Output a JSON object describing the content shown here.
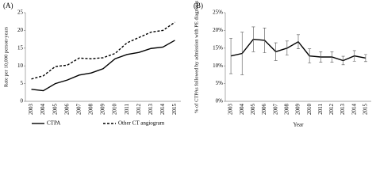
{
  "chart_data": [
    {
      "type": "line",
      "title": "(A)",
      "ylabel": "Rate per 10,000 person-years",
      "categories": [
        "2003",
        "2004",
        "2005",
        "2006",
        "2007",
        "2008",
        "2009",
        "2010",
        "2011",
        "2012",
        "2013",
        "2014",
        "2015"
      ],
      "ylim": [
        0,
        25
      ],
      "yticks": [
        0,
        5,
        10,
        15,
        20,
        25
      ],
      "series": [
        {
          "name": "CTPA",
          "color": "#000000",
          "line_style": "solid",
          "values": [
            3.4,
            3.0,
            5.0,
            6.0,
            7.4,
            8.0,
            9.2,
            12.0,
            13.2,
            13.8,
            14.9,
            15.3,
            17.2
          ]
        },
        {
          "name": "Other CT angiogram",
          "color": "#000000",
          "line_style": "dashed",
          "values": [
            6.3,
            7.2,
            9.8,
            10.2,
            12.2,
            12.0,
            12.3,
            13.5,
            16.5,
            18.0,
            19.5,
            20.0,
            22.3
          ]
        }
      ],
      "legend": "bottom"
    },
    {
      "type": "line",
      "title": "(B)",
      "ylabel": "% of CTPAs followed by admission with PE diagnosis",
      "xlabel": "Year",
      "categories": [
        "2003",
        "2004",
        "2005",
        "2006",
        "2007",
        "2008",
        "2009",
        "2010",
        "2011",
        "2012",
        "2013",
        "2014",
        "2015"
      ],
      "ylim": [
        0,
        25
      ],
      "yticks": [
        {
          "value": 0,
          "label": "0%"
        },
        {
          "value": 5,
          "label": "5%"
        },
        {
          "value": 10,
          "label": "10%"
        },
        {
          "value": 15,
          "label": "15%"
        },
        {
          "value": 20,
          "label": "20%"
        },
        {
          "value": 25,
          "label": "25%"
        }
      ],
      "series": [
        {
          "name": "PE diagnosis",
          "color": "#000000",
          "line_style": "solid",
          "values": [
            12.8,
            13.5,
            17.5,
            17.2,
            14.0,
            15.0,
            16.8,
            12.8,
            12.5,
            12.5,
            11.5,
            12.8,
            12.2
          ],
          "errors": [
            5.0,
            6.0,
            3.5,
            3.5,
            2.5,
            2.0,
            2.0,
            2.0,
            1.5,
            1.5,
            1.2,
            1.5,
            1.0
          ]
        }
      ]
    }
  ]
}
